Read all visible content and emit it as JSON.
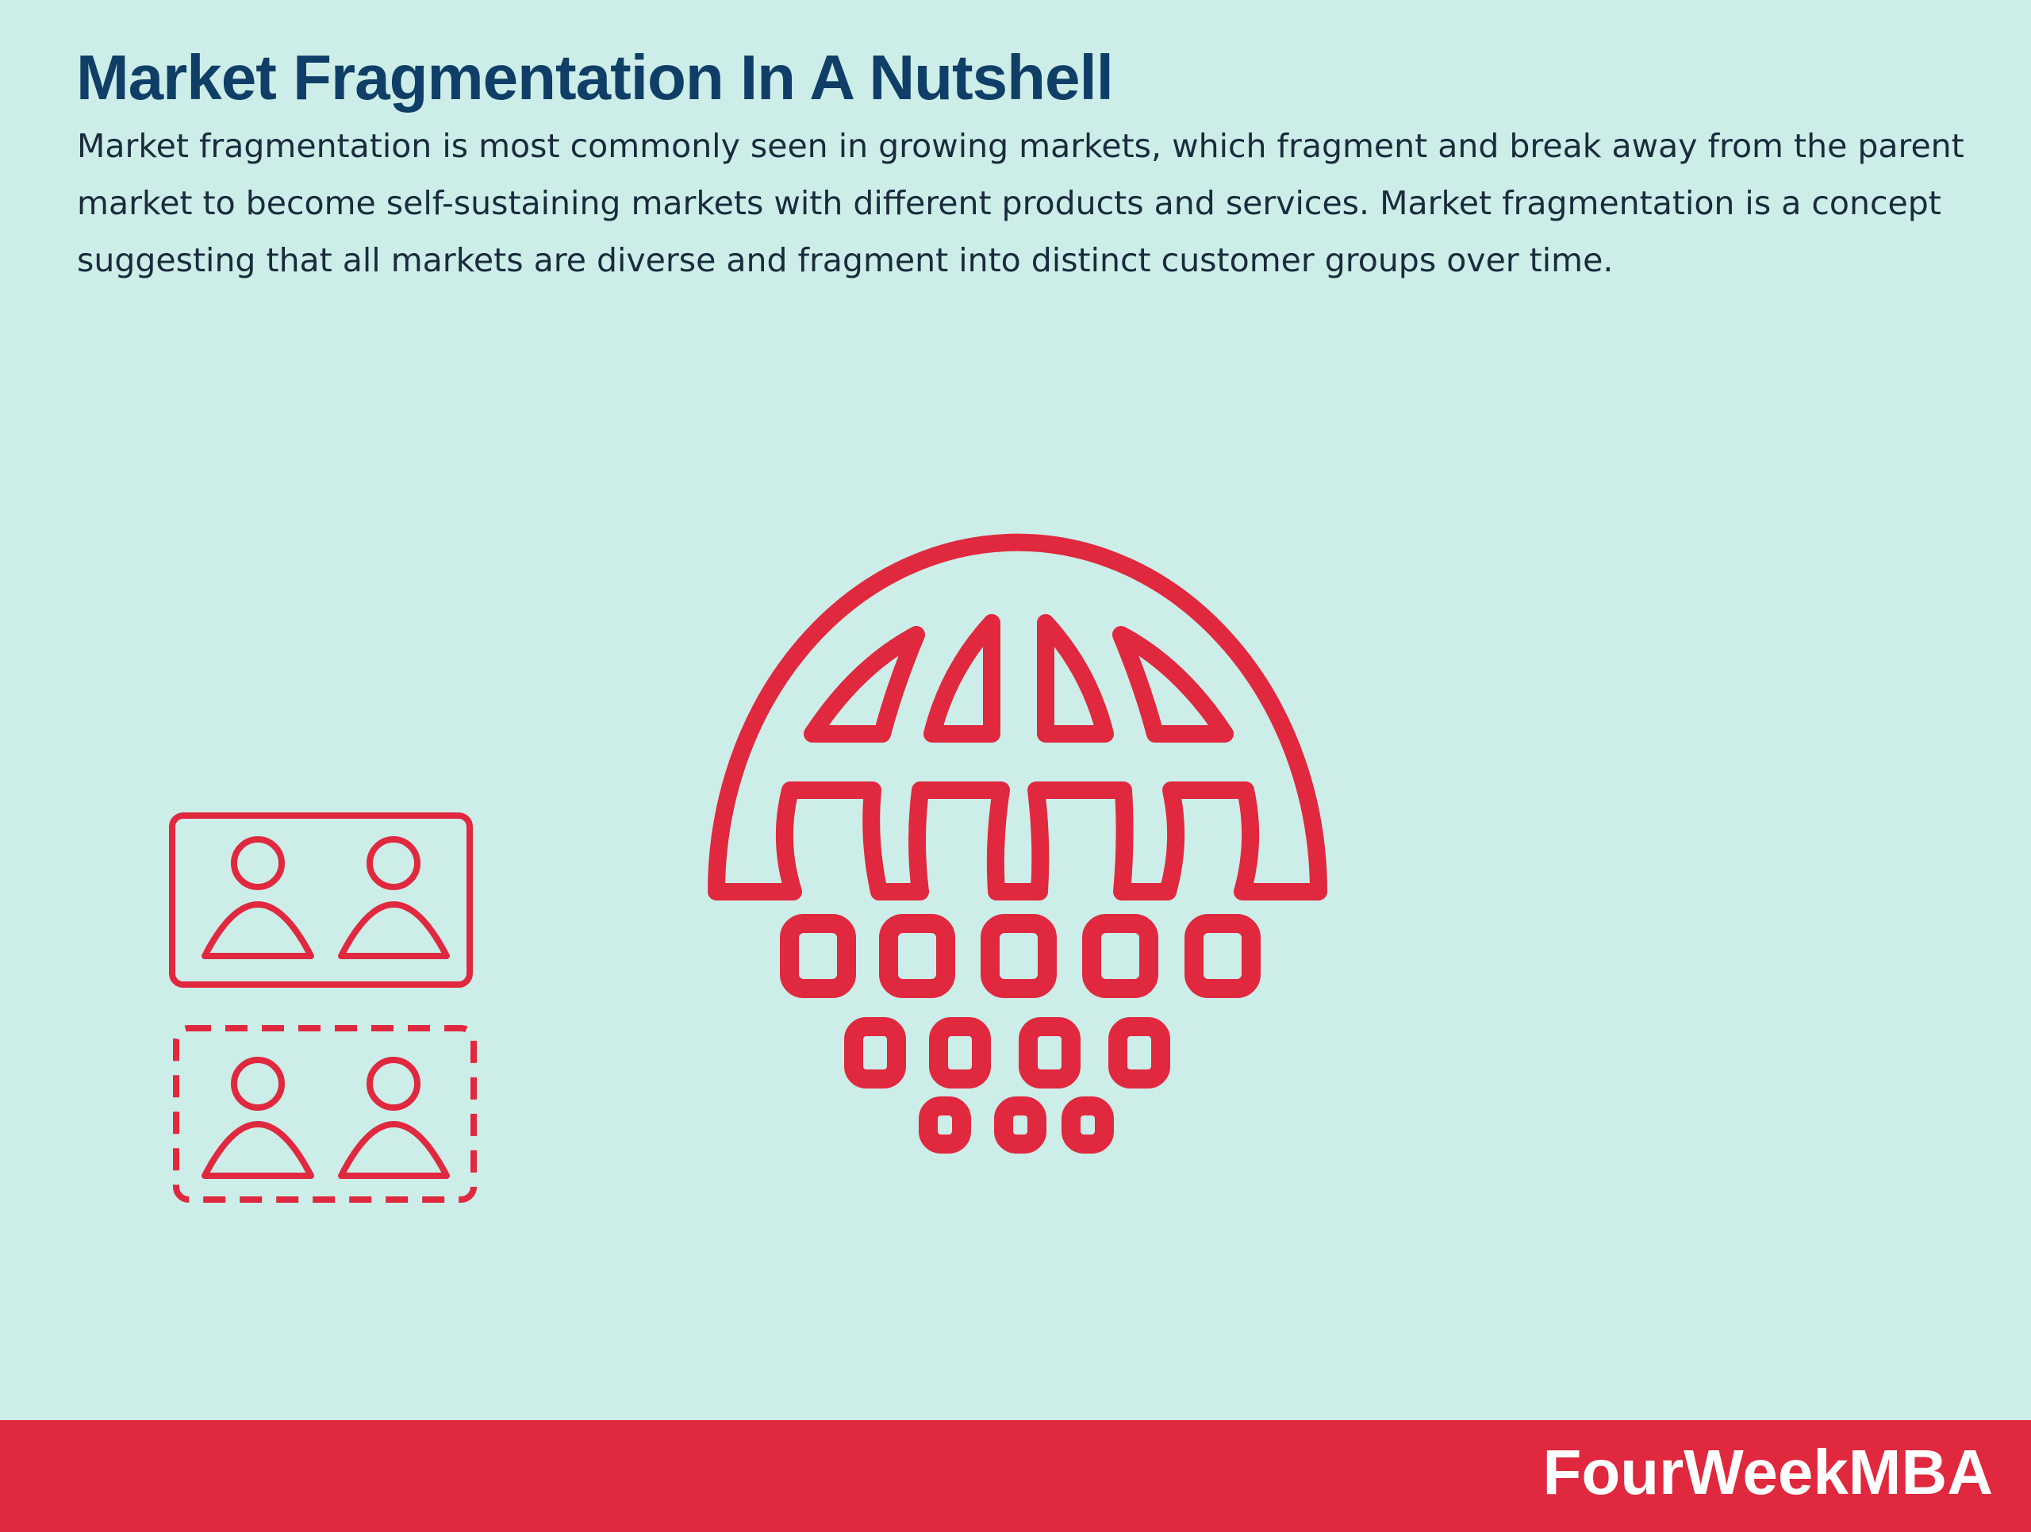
{
  "header": {
    "title": "Market Fragmentation In A Nutshell",
    "description_lines": [
      "Market fragmentation is most commonly seen in growing markets, which fragment and break away from the parent",
      "market to become self-sustaining markets with different products and services. Market fragmentation is a concept",
      "suggesting that all markets are diverse and fragment into distinct customer groups over time."
    ]
  },
  "colors": {
    "background": "#cdede9",
    "title": "#0f3e66",
    "accent": "#e0283e",
    "footer_text": "#ffffff"
  },
  "icons": {
    "customer_group_solid": "customer-group-icon",
    "customer_group_dashed": "fragmented-customer-group-icon",
    "globe_fragments": "fragmenting-globe-icon"
  },
  "footer": {
    "brand": "FourWeekMBA"
  }
}
